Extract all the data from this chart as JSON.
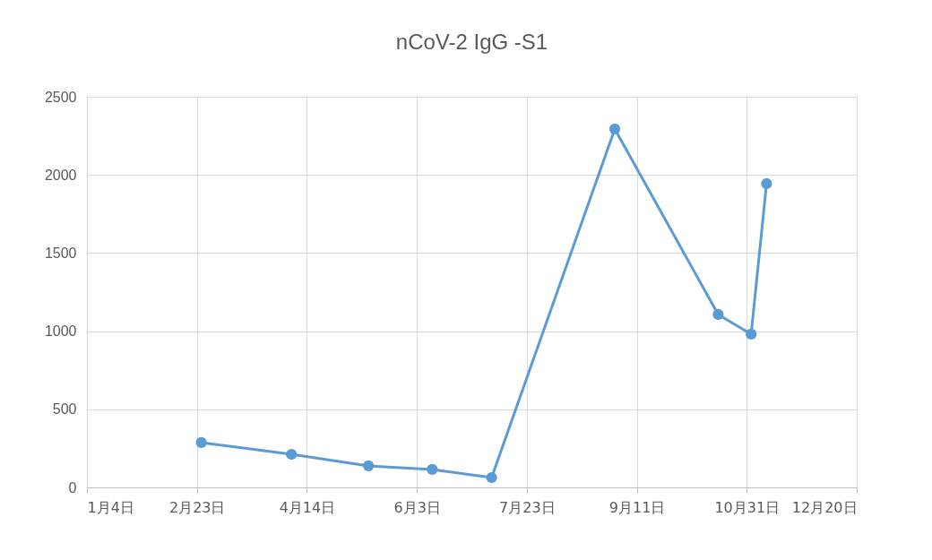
{
  "chart_data": {
    "type": "line",
    "title": "nCoV-2 IgG -S1",
    "x": [
      "--02-25",
      "--04-07",
      "--05-12",
      "--06-10",
      "--07-07",
      "--09-01",
      "--10-18",
      "--11-02",
      "--11-09"
    ],
    "series": [
      {
        "color": "#5b9bd5",
        "values": [
          287,
          212,
          138,
          115,
          63,
          2294,
          1107,
          981,
          1944
        ]
      }
    ],
    "xlim": [
      "--01-04",
      "--12-20"
    ],
    "xticks": [
      {
        "value": "--01-04",
        "label": "1月4日"
      },
      {
        "value": "--02-23",
        "label": "2月23日"
      },
      {
        "value": "--04-14",
        "label": "4月14日"
      },
      {
        "value": "--06-03",
        "label": "6月3日"
      },
      {
        "value": "--07-23",
        "label": "7月23日"
      },
      {
        "value": "--09-11",
        "label": "9月11日"
      },
      {
        "value": "--10-31",
        "label": "10月31日"
      },
      {
        "value": "--12-20",
        "label": "12月20日"
      }
    ],
    "ylim": [
      0,
      2500
    ],
    "yticks": [
      0,
      500,
      1000,
      1500,
      2000,
      2500
    ],
    "grid": true,
    "marker": "circle"
  }
}
